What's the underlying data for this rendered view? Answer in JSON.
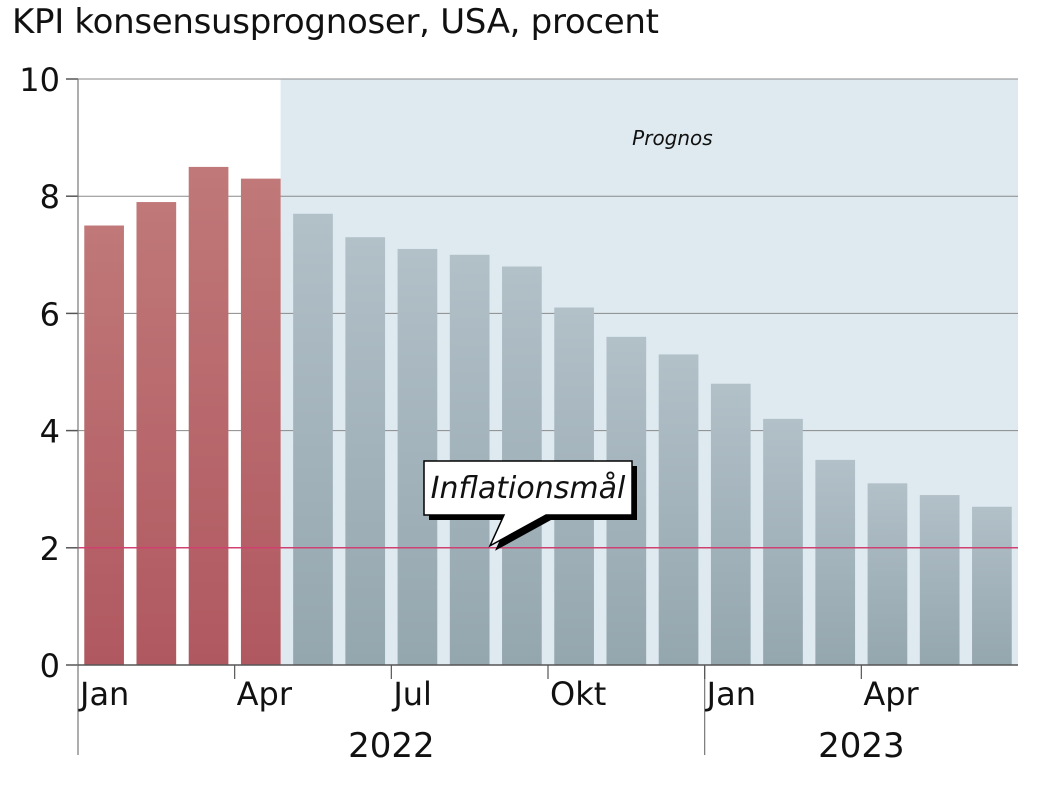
{
  "title": "KPI konsensusprognoser, USA, procent",
  "colors": {
    "actual_top": "#c07878",
    "actual_bottom": "#b05860",
    "forecast_top": "#b2c0c8",
    "forecast_bottom": "#94a6ae",
    "forecast_background": "#deeaf0",
    "prognos_label": "#2aa0d0",
    "target_line": "#d04070",
    "grid": "#8a8a8a"
  },
  "chart_data": {
    "type": "bar",
    "title": "KPI konsensusprognoser, USA, procent",
    "categories": [
      "2022-01",
      "2022-02",
      "2022-03",
      "2022-04",
      "2022-05",
      "2022-06",
      "2022-07",
      "2022-08",
      "2022-09",
      "2022-10",
      "2022-11",
      "2022-12",
      "2023-01",
      "2023-02",
      "2023-03",
      "2023-04",
      "2023-05",
      "2023-06"
    ],
    "series": [
      {
        "values": [
          7.5,
          7.9,
          8.5,
          8.3,
          null,
          null,
          null,
          null,
          null,
          null,
          null,
          null,
          null,
          null,
          null,
          null,
          null,
          null
        ]
      },
      {
        "values": [
          null,
          null,
          null,
          null,
          7.7,
          7.3,
          7.1,
          7.0,
          6.8,
          6.1,
          5.6,
          5.3,
          4.8,
          4.2,
          3.5,
          3.1,
          2.9,
          2.7
        ]
      }
    ],
    "ylim": [
      0,
      10
    ],
    "yticks": [
      "0",
      "2",
      "4",
      "6",
      "8",
      "10"
    ],
    "month_labels": [
      {
        "index": 0,
        "label": "Jan"
      },
      {
        "index": 3,
        "label": "Apr"
      },
      {
        "index": 6,
        "label": "Jul"
      },
      {
        "index": 9,
        "label": "Okt"
      },
      {
        "index": 12,
        "label": "Jan"
      },
      {
        "index": 15,
        "label": "Apr"
      }
    ],
    "year_labels": [
      {
        "start": 0,
        "end": 11,
        "label": "2022"
      },
      {
        "start": 12,
        "end": 17,
        "label": "2023"
      }
    ],
    "forecast_region": {
      "start": 4,
      "end": 17,
      "label": "Prognos"
    },
    "target_line": {
      "value": 2,
      "label": "Inflationsmål"
    },
    "grid": true
  }
}
